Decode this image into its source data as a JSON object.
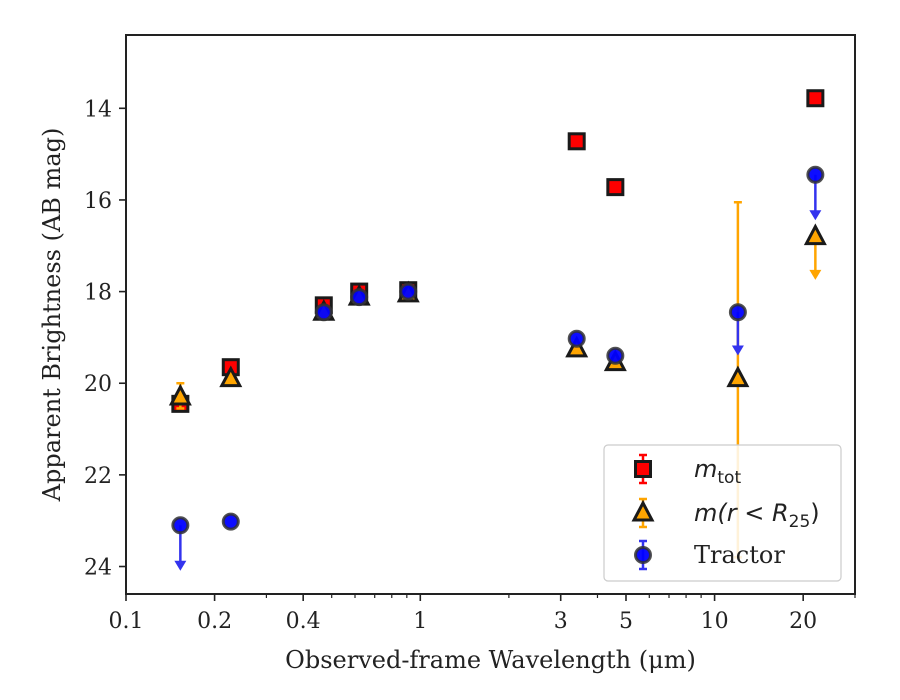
{
  "chart_data": {
    "type": "scatter",
    "xlabel": "Observed-frame Wavelength (μm)",
    "ylabel": "Apparent Brightness (AB mag)",
    "x_scale": "log",
    "xlim": [
      0.1,
      30
    ],
    "ylim": [
      24.6,
      12.4
    ],
    "y_inverted": true,
    "x_ticks": [
      0.1,
      0.2,
      0.4,
      1,
      3,
      5,
      10,
      20
    ],
    "x_tick_labels": [
      "0.1",
      "0.2",
      "0.4",
      "1",
      "3",
      "5",
      "10",
      "20"
    ],
    "y_ticks": [
      14,
      16,
      18,
      20,
      22,
      24
    ],
    "y_tick_labels": [
      "14",
      "16",
      "18",
      "20",
      "22",
      "24"
    ],
    "grid": false,
    "legend_position": "bottom-right",
    "series": [
      {
        "name": "m_tot",
        "legend_main": "m",
        "legend_sub": "tot",
        "marker": "square",
        "color": "#ff0000",
        "edge_color": "#1a1a1a",
        "errcolor": "#ff0000",
        "points": [
          {
            "x": 0.153,
            "y": 20.45,
            "err": 0.12
          },
          {
            "x": 0.227,
            "y": 19.65,
            "err": 0.12
          },
          {
            "x": 0.47,
            "y": 18.3,
            "err": 0.1
          },
          {
            "x": 0.62,
            "y": 18.0,
            "err": 0.1
          },
          {
            "x": 0.91,
            "y": 17.97,
            "err": 0.08
          },
          {
            "x": 3.4,
            "y": 14.72,
            "err": 0.05
          },
          {
            "x": 4.6,
            "y": 15.72,
            "err": 0.05
          },
          {
            "x": 22.0,
            "y": 13.78,
            "err": 0.05
          }
        ]
      },
      {
        "name": "m(r < R25)",
        "legend_main": "m(r < R",
        "legend_sub": "25",
        "legend_tail": ")",
        "marker": "triangle",
        "color": "#ffa500",
        "edge_color": "#1a1a1a",
        "errcolor": "#ffa500",
        "points": [
          {
            "x": 0.153,
            "y": 20.3,
            "err_low": 0.3,
            "err_high": 0.25
          },
          {
            "x": 0.227,
            "y": 19.9,
            "err_low": 0.05,
            "err_high": 0.05
          },
          {
            "x": 0.47,
            "y": 18.45,
            "err_low": 0.05,
            "err_high": 0.05
          },
          {
            "x": 0.62,
            "y": 18.12,
            "err_low": 0.05,
            "err_high": 0.05
          },
          {
            "x": 0.91,
            "y": 18.05,
            "err_low": 0.05,
            "err_high": 0.05
          },
          {
            "x": 3.4,
            "y": 19.25,
            "err_low": 0.05,
            "err_high": 0.05
          },
          {
            "x": 4.6,
            "y": 19.55,
            "err_low": 0.05,
            "err_high": 0.05
          },
          {
            "x": 12.0,
            "y": 19.9,
            "err_low": 3.85,
            "err_high": 3.9
          },
          {
            "x": 22.0,
            "y": 16.8,
            "upper_limit": true,
            "arrow_to": 17.7
          }
        ]
      },
      {
        "name": "Tractor",
        "legend_main": "Tractor",
        "marker": "circle",
        "color": "#0000ff",
        "edge_color": "#333333",
        "errcolor": "#3333ee",
        "points": [
          {
            "x": 0.153,
            "y": 23.1,
            "upper_limit": true,
            "arrow_to": 24.05
          },
          {
            "x": 0.227,
            "y": 23.02
          },
          {
            "x": 0.47,
            "y": 18.45
          },
          {
            "x": 0.62,
            "y": 18.12
          },
          {
            "x": 0.91,
            "y": 18.0
          },
          {
            "x": 3.4,
            "y": 19.03
          },
          {
            "x": 4.6,
            "y": 19.4
          },
          {
            "x": 12.0,
            "y": 18.45,
            "upper_limit": true,
            "arrow_to": 19.35
          },
          {
            "x": 22.0,
            "y": 15.45,
            "upper_limit": true,
            "arrow_to": 16.4
          }
        ]
      }
    ]
  }
}
